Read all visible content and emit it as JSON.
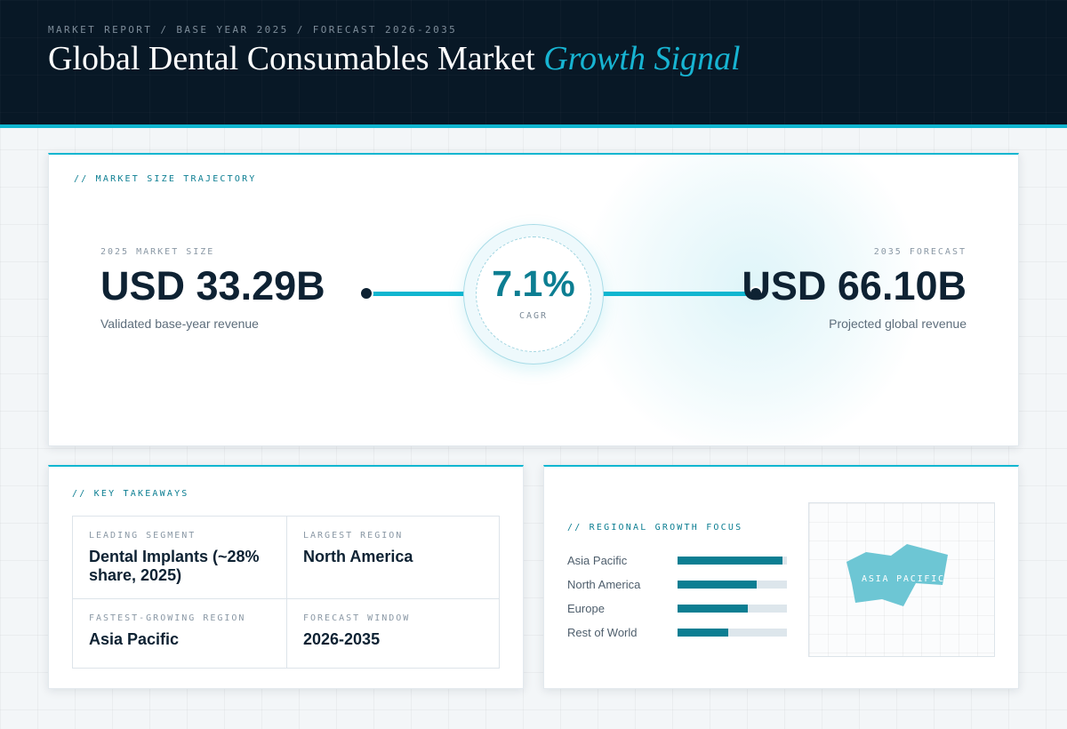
{
  "header": {
    "kicker": "MARKET REPORT / BASE YEAR 2025 / FORECAST 2026-2035",
    "title_main": "Global Dental Consumables Market",
    "title_accent": "Growth Signal"
  },
  "trajectory": {
    "label": "// MARKET SIZE TRAJECTORY",
    "base": {
      "label": "2025 MARKET SIZE",
      "value": "USD 33.29B",
      "caption": "Validated base-year revenue"
    },
    "forecast": {
      "label": "2035 FORECAST",
      "value": "USD 66.10B",
      "caption": "Projected global revenue"
    },
    "cagr": {
      "value": "7.1%",
      "label": "CAGR"
    }
  },
  "takeaways": {
    "label": "// KEY TAKEAWAYS",
    "items": [
      {
        "label": "LEADING SEGMENT",
        "value": "Dental Implants (~28% share, 2025)"
      },
      {
        "label": "LARGEST REGION",
        "value": "North America"
      },
      {
        "label": "FASTEST-GROWING REGION",
        "value": "Asia Pacific"
      },
      {
        "label": "FORECAST WINDOW",
        "value": "2026-2035"
      }
    ]
  },
  "regional": {
    "label": "// REGIONAL GROWTH FOCUS",
    "regions": [
      {
        "name": "Asia Pacific",
        "level": 0.96
      },
      {
        "name": "North America",
        "level": 0.72
      },
      {
        "name": "Europe",
        "level": 0.64
      },
      {
        "name": "Rest of World",
        "level": 0.46
      }
    ],
    "map_label": "ASIA PACIFIC",
    "bar_color": "#0c7e92",
    "accent_color": "#10b6d0"
  }
}
